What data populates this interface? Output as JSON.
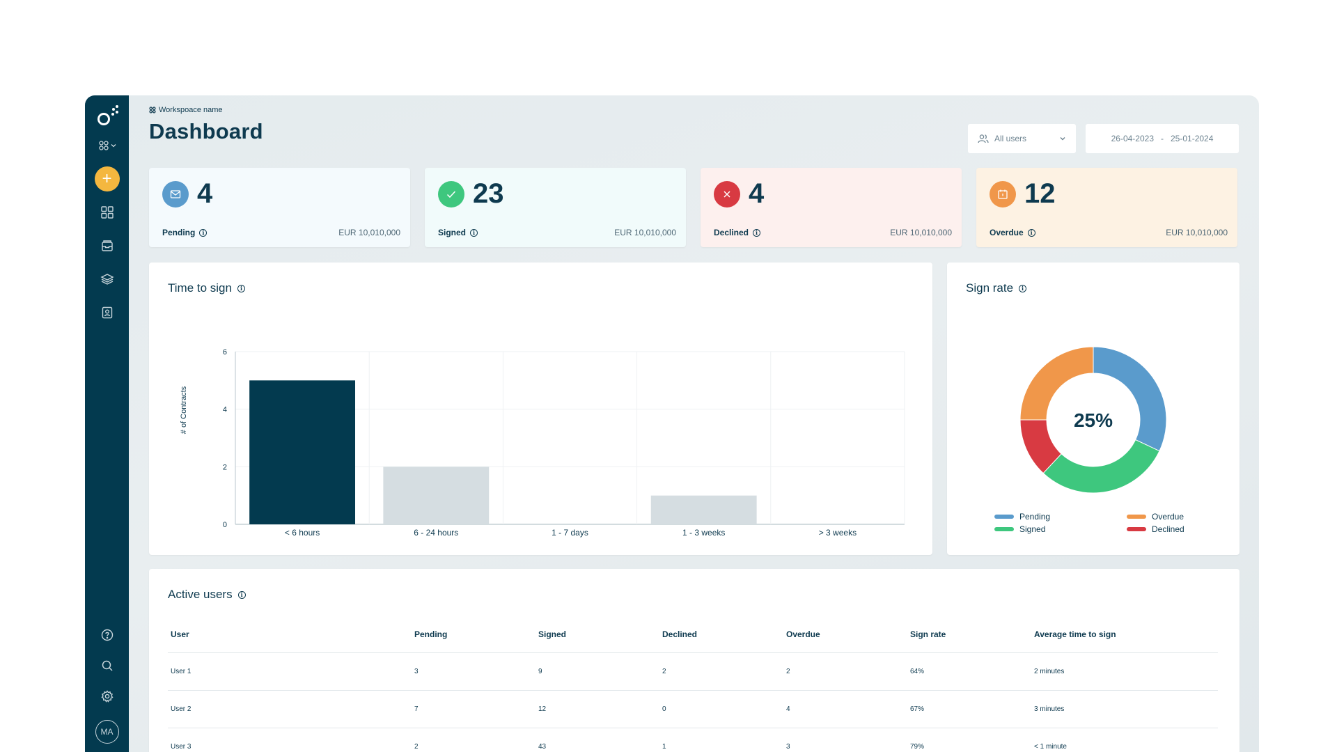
{
  "workspace": {
    "label": "Workspoace name"
  },
  "page": {
    "title": "Dashboard"
  },
  "filters": {
    "users_select": "All users",
    "date_from": "26-04-2023",
    "date_sep": "-",
    "date_to": "25-01-2024"
  },
  "sidebar": {
    "avatar_initials": "MA",
    "add_symbol": "+",
    "nav_icons": [
      "dashboard-grid-icon",
      "inbox-icon",
      "layers-icon",
      "contacts-icon"
    ],
    "bottom_icons": [
      "help-icon",
      "search-icon",
      "settings-icon"
    ]
  },
  "stats": [
    {
      "count": "4",
      "label": "Pending",
      "amount": "EUR 10,010,000",
      "bg": "#f4fafd",
      "icon_bg": "#5a9bcc",
      "icon": "mail-icon"
    },
    {
      "count": "23",
      "label": "Signed",
      "amount": "EUR 10,010,000",
      "bg": "#f1fbfb",
      "icon_bg": "#3ec77e",
      "icon": "check-icon"
    },
    {
      "count": "4",
      "label": "Declined",
      "amount": "EUR 10,010,000",
      "bg": "#fdf0ee",
      "icon_bg": "#d83a42",
      "icon": "close-icon"
    },
    {
      "count": "12",
      "label": "Overdue",
      "amount": "EUR 10,010,000",
      "bg": "#fdf2e3",
      "icon_bg": "#f0974a",
      "icon": "calendar-icon"
    }
  ],
  "time_to_sign": {
    "title": "Time to sign"
  },
  "sign_rate": {
    "title": "Sign rate",
    "center_label": "25%"
  },
  "active_users": {
    "title": "Active users",
    "columns": [
      "User",
      "Pending",
      "Signed",
      "Declined",
      "Overdue",
      "Sign rate",
      "Average time to sign"
    ],
    "rows": [
      [
        "User 1",
        "3",
        "9",
        "2",
        "2",
        "64%",
        "2 minutes"
      ],
      [
        "User 2",
        "7",
        "12",
        "0",
        "4",
        "67%",
        "3 minutes"
      ],
      [
        "User 3",
        "2",
        "43",
        "1",
        "3",
        "79%",
        "< 1 minute"
      ]
    ]
  },
  "chart_data": [
    {
      "type": "bar",
      "title": "Time to sign",
      "xlabel": "",
      "ylabel": "# of Contracts",
      "categories": [
        "< 6 hours",
        "6 - 24 hours",
        "1 - 7 days",
        "1 - 3 weeks",
        "> 3 weeks"
      ],
      "values": [
        5,
        2,
        0,
        1,
        0
      ],
      "ylim": [
        0,
        6
      ],
      "yticks": [
        "0",
        "2",
        "4",
        "6"
      ],
      "bar_colors": [
        "#033a4f",
        "#d5dde1",
        "#d5dde1",
        "#d5dde1",
        "#d5dde1"
      ],
      "grid": true
    },
    {
      "type": "pie",
      "title": "Sign rate",
      "center_label": "25%",
      "labels": [
        "Pending",
        "Signed",
        "Declined",
        "Overdue"
      ],
      "values": [
        32,
        30,
        13,
        25
      ],
      "colors": [
        "#5a9bcc",
        "#3ec77e",
        "#d83a42",
        "#f0974a"
      ],
      "legend": "bottom"
    }
  ]
}
